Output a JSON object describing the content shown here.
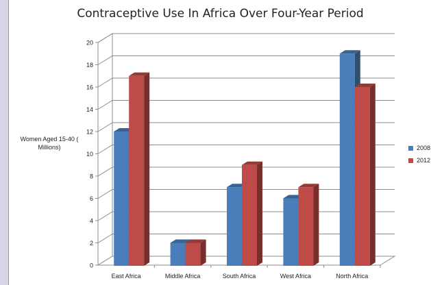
{
  "chart_data": {
    "type": "bar",
    "title": "Contraceptive Use In Africa Over Four-Year Period",
    "xlabel": "",
    "ylabel": "Women Aged 15-40 ( Millions)",
    "categories": [
      "East Africa",
      "Middle Africa",
      "South Africa",
      "West Africa",
      "North Africa"
    ],
    "series": [
      {
        "name": "2008",
        "values": [
          12,
          2,
          7,
          6,
          19
        ],
        "color": "#4a7ebb"
      },
      {
        "name": "2012",
        "values": [
          17,
          2,
          9,
          7,
          16
        ],
        "color": "#be4b48"
      }
    ],
    "ylim": [
      0,
      20
    ],
    "yticks": [
      "0",
      "2",
      "4",
      "6",
      "8",
      "10",
      "12",
      "14",
      "16",
      "18",
      "20"
    ],
    "grid": true,
    "legend_position": "right"
  }
}
